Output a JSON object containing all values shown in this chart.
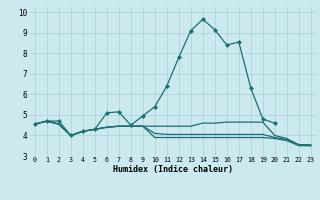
{
  "title": "",
  "xlabel": "Humidex (Indice chaleur)",
  "ylabel": "",
  "xlim": [
    -0.5,
    23.5
  ],
  "ylim": [
    3.0,
    10.3
  ],
  "yticks": [
    3,
    4,
    5,
    6,
    7,
    8,
    9,
    10
  ],
  "xticks": [
    0,
    1,
    2,
    3,
    4,
    5,
    6,
    7,
    8,
    9,
    10,
    11,
    12,
    13,
    14,
    15,
    16,
    17,
    18,
    19,
    20,
    21,
    22,
    23
  ],
  "bg_color": "#cce9f0",
  "line_color": "#1a7070",
  "grid_color": "#aacfd8",
  "lines": [
    {
      "x": [
        0,
        1,
        2,
        3,
        4,
        5,
        6,
        7,
        8,
        9,
        10,
        11,
        12,
        13,
        14,
        15,
        16,
        17,
        18,
        19,
        20
      ],
      "y": [
        4.55,
        4.7,
        4.7,
        4.0,
        4.2,
        4.3,
        5.1,
        5.15,
        4.5,
        4.95,
        5.4,
        6.4,
        7.8,
        9.1,
        9.65,
        9.15,
        8.4,
        8.55,
        6.3,
        4.8,
        4.6
      ],
      "marker": true
    },
    {
      "x": [
        0,
        1,
        2,
        3,
        4,
        5,
        6,
        7,
        8,
        9,
        10,
        11,
        12,
        13,
        14,
        15,
        16,
        17,
        18,
        19,
        20,
        21,
        22,
        23
      ],
      "y": [
        4.55,
        4.7,
        4.55,
        4.0,
        4.2,
        4.3,
        4.4,
        4.45,
        4.45,
        4.45,
        4.45,
        4.45,
        4.45,
        4.45,
        4.6,
        4.6,
        4.65,
        4.65,
        4.65,
        4.65,
        4.0,
        3.85,
        3.55,
        3.55
      ],
      "marker": false
    },
    {
      "x": [
        0,
        1,
        2,
        3,
        4,
        5,
        6,
        7,
        8,
        9,
        10,
        11,
        12,
        13,
        14,
        15,
        16,
        17,
        18,
        19,
        20,
        21,
        22,
        23
      ],
      "y": [
        4.55,
        4.7,
        4.55,
        4.0,
        4.2,
        4.3,
        4.4,
        4.45,
        4.45,
        4.45,
        4.1,
        4.05,
        4.05,
        4.05,
        4.05,
        4.05,
        4.05,
        4.05,
        4.05,
        4.05,
        3.9,
        3.8,
        3.55,
        3.5
      ],
      "marker": false
    },
    {
      "x": [
        0,
        1,
        2,
        3,
        4,
        5,
        6,
        7,
        8,
        9,
        10,
        11,
        12,
        13,
        14,
        15,
        16,
        17,
        18,
        19,
        20,
        21,
        22,
        23
      ],
      "y": [
        4.55,
        4.7,
        4.55,
        4.0,
        4.2,
        4.3,
        4.4,
        4.45,
        4.45,
        4.45,
        3.9,
        3.9,
        3.9,
        3.9,
        3.9,
        3.9,
        3.9,
        3.9,
        3.9,
        3.9,
        3.85,
        3.75,
        3.5,
        3.5
      ],
      "marker": false
    }
  ]
}
